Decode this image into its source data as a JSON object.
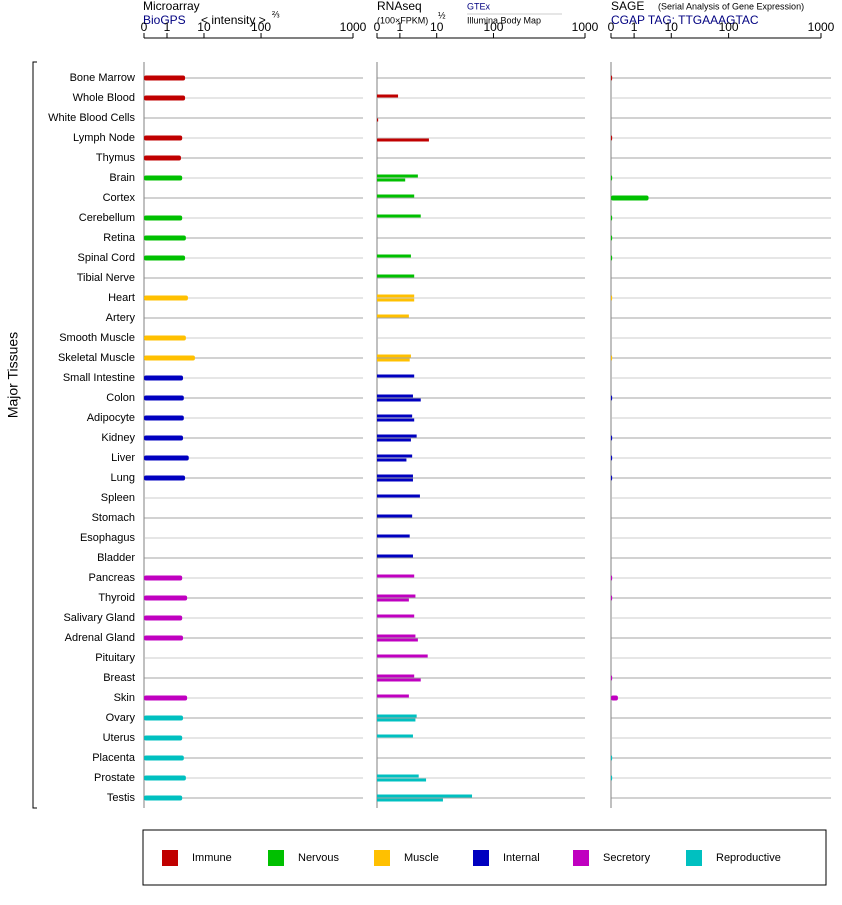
{
  "y_axis_label": "Major Tissues",
  "groups": [
    {
      "name": "Immune",
      "color": "#c00000",
      "tissues": [
        "Bone Marrow",
        "Whole Blood",
        "White Blood Cells",
        "Lymph Node",
        "Thymus"
      ]
    },
    {
      "name": "Nervous",
      "color": "#00c000",
      "tissues": [
        "Brain",
        "Cortex",
        "Cerebellum",
        "Retina",
        "Spinal Cord",
        "Tibial Nerve"
      ]
    },
    {
      "name": "Muscle",
      "color": "#ffc000",
      "tissues": [
        "Heart",
        "Artery",
        "Smooth Muscle",
        "Skeletal Muscle"
      ]
    },
    {
      "name": "Internal",
      "color": "#0000c0",
      "tissues": [
        "Small Intestine",
        "Colon",
        "Adipocyte",
        "Kidney",
        "Liver",
        "Lung",
        "Spleen",
        "Stomach",
        "Esophagus",
        "Bladder"
      ]
    },
    {
      "name": "Secretory",
      "color": "#c000c0",
      "tissues": [
        "Pancreas",
        "Thyroid",
        "Salivary Gland",
        "Adrenal Gland",
        "Pituitary",
        "Breast",
        "Skin"
      ]
    },
    {
      "name": "Reproductive",
      "color": "#00c0c0",
      "tissues": [
        "Ovary",
        "Uterus",
        "Placenta",
        "Prostate",
        "Testis"
      ]
    }
  ],
  "chart_data": [
    {
      "type": "bar",
      "title": "Microarray",
      "source": "BioGPS",
      "axis_label": "< intensity >",
      "axis_power": "⅔",
      "xlim": [
        0,
        1000
      ],
      "xticks": [
        0,
        1,
        10,
        100,
        1000
      ],
      "series": [
        {
          "values": [
            5.4,
            5.4,
            null,
            4.7,
            4.4,
            4.7,
            null,
            4.7,
            5.6,
            5.4,
            null,
            6.1,
            null,
            5.6,
            7.8,
            4.9,
            5.1,
            5.1,
            4.9,
            6.3,
            5.4,
            null,
            null,
            null,
            null,
            4.7,
            5.9,
            4.7,
            4.9,
            null,
            null,
            5.9,
            4.9,
            4.7,
            5.1,
            5.6,
            4.7
          ]
        }
      ]
    },
    {
      "type": "bar",
      "title": "RNAseq",
      "axis_label": "(100×FPKM)",
      "axis_power": "½",
      "xlim": [
        0,
        1000
      ],
      "xticks": [
        0,
        1,
        10,
        100,
        1000
      ],
      "series": [
        {
          "name": "GTEx",
          "values": [
            null,
            0.92,
            null,
            null,
            null,
            5.4,
            4.5,
            6.1,
            null,
            3.7,
            4.5,
            4.5,
            3.2,
            null,
            3.7,
            4.5,
            4.2,
            4.0,
            5.1,
            4.0,
            4.2,
            5.9,
            4.0,
            3.4,
            4.2,
            4.5,
            4.8,
            4.5,
            4.8,
            7.8,
            4.5,
            3.2,
            5.1,
            4.2,
            null,
            5.6,
            66
          ]
        },
        {
          "name": "Illumina Body Map",
          "values": [
            null,
            null,
            0.05,
            8.1,
            null,
            2.3,
            null,
            null,
            null,
            null,
            null,
            4.5,
            null,
            null,
            3.4,
            null,
            6.1,
            4.5,
            3.7,
            2.6,
            4.2,
            null,
            null,
            null,
            null,
            null,
            3.2,
            null,
            5.4,
            null,
            6.1,
            null,
            4.8,
            null,
            null,
            7.4,
            19.9
          ]
        }
      ]
    },
    {
      "type": "bar",
      "title": "SAGE",
      "subtitle": "(Serial Analysis of Gene Expression)",
      "source": "CGAP TAG: TTGAAAGTAC",
      "xlim": [
        0,
        1000
      ],
      "xticks": [
        0,
        1,
        10,
        100,
        1000
      ],
      "series": [
        {
          "values": [
            0.05,
            null,
            null,
            0.05,
            null,
            0.05,
            4.5,
            0.05,
            0.05,
            0.05,
            null,
            0.05,
            null,
            null,
            0.05,
            null,
            0.05,
            null,
            0.05,
            0.05,
            0.05,
            null,
            null,
            null,
            null,
            0.05,
            0.05,
            null,
            null,
            null,
            0.05,
            0.3,
            null,
            null,
            0.05,
            0.05,
            null
          ]
        }
      ]
    }
  ]
}
